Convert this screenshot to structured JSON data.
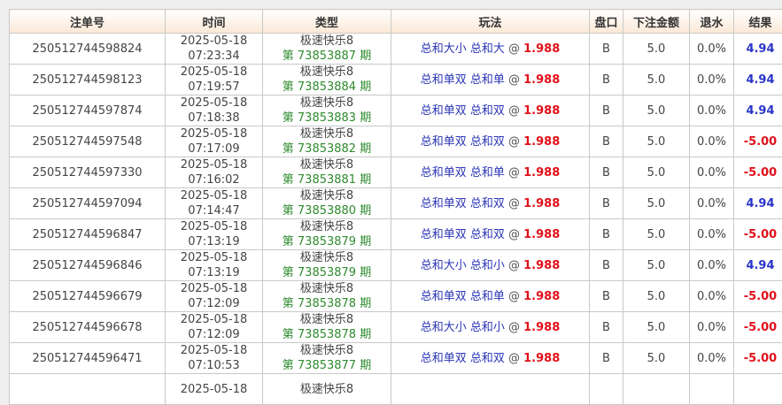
{
  "headers": [
    "注单号",
    "时间",
    "类型",
    "玩法",
    "盘口",
    "下注金额",
    "退水",
    "结果"
  ],
  "rows": [
    {
      "id": "250512744598824",
      "date": "2025-05-18",
      "time": "07:23:34",
      "game": "极速快乐8",
      "issue": "第 73853887 期",
      "play": "总和大小 总和大",
      "odds": "1.988",
      "pan": "B",
      "amount": "5.0",
      "rebate": "0.0%",
      "result": "4.94"
    },
    {
      "id": "250512744598123",
      "date": "2025-05-18",
      "time": "07:19:57",
      "game": "极速快乐8",
      "issue": "第 73853884 期",
      "play": "总和单双 总和单",
      "odds": "1.988",
      "pan": "B",
      "amount": "5.0",
      "rebate": "0.0%",
      "result": "4.94"
    },
    {
      "id": "250512744597874",
      "date": "2025-05-18",
      "time": "07:18:38",
      "game": "极速快乐8",
      "issue": "第 73853883 期",
      "play": "总和单双 总和双",
      "odds": "1.988",
      "pan": "B",
      "amount": "5.0",
      "rebate": "0.0%",
      "result": "4.94"
    },
    {
      "id": "250512744597548",
      "date": "2025-05-18",
      "time": "07:17:09",
      "game": "极速快乐8",
      "issue": "第 73853882 期",
      "play": "总和单双 总和双",
      "odds": "1.988",
      "pan": "B",
      "amount": "5.0",
      "rebate": "0.0%",
      "result": "-5.00"
    },
    {
      "id": "250512744597330",
      "date": "2025-05-18",
      "time": "07:16:02",
      "game": "极速快乐8",
      "issue": "第 73853881 期",
      "play": "总和单双 总和单",
      "odds": "1.988",
      "pan": "B",
      "amount": "5.0",
      "rebate": "0.0%",
      "result": "-5.00"
    },
    {
      "id": "250512744597094",
      "date": "2025-05-18",
      "time": "07:14:47",
      "game": "极速快乐8",
      "issue": "第 73853880 期",
      "play": "总和单双 总和双",
      "odds": "1.988",
      "pan": "B",
      "amount": "5.0",
      "rebate": "0.0%",
      "result": "4.94"
    },
    {
      "id": "250512744596847",
      "date": "2025-05-18",
      "time": "07:13:19",
      "game": "极速快乐8",
      "issue": "第 73853879 期",
      "play": "总和单双 总和双",
      "odds": "1.988",
      "pan": "B",
      "amount": "5.0",
      "rebate": "0.0%",
      "result": "-5.00"
    },
    {
      "id": "250512744596846",
      "date": "2025-05-18",
      "time": "07:13:19",
      "game": "极速快乐8",
      "issue": "第 73853879 期",
      "play": "总和大小 总和小",
      "odds": "1.988",
      "pan": "B",
      "amount": "5.0",
      "rebate": "0.0%",
      "result": "4.94"
    },
    {
      "id": "250512744596679",
      "date": "2025-05-18",
      "time": "07:12:09",
      "game": "极速快乐8",
      "issue": "第 73853878 期",
      "play": "总和单双 总和单",
      "odds": "1.988",
      "pan": "B",
      "amount": "5.0",
      "rebate": "0.0%",
      "result": "-5.00"
    },
    {
      "id": "250512744596678",
      "date": "2025-05-18",
      "time": "07:12:09",
      "game": "极速快乐8",
      "issue": "第 73853878 期",
      "play": "总和大小 总和小",
      "odds": "1.988",
      "pan": "B",
      "amount": "5.0",
      "rebate": "0.0%",
      "result": "-5.00"
    },
    {
      "id": "250512744596471",
      "date": "2025-05-18",
      "time": "07:10:53",
      "game": "极速快乐8",
      "issue": "第 73853877 期",
      "play": "总和单双 总和双",
      "odds": "1.988",
      "pan": "B",
      "amount": "5.0",
      "rebate": "0.0%",
      "result": "-5.00"
    },
    {
      "id": "",
      "date": "2025-05-18",
      "time": "",
      "game": "极速快乐8",
      "issue": "",
      "play": "",
      "odds": "",
      "pan": "",
      "amount": "",
      "rebate": "",
      "result": ""
    }
  ],
  "at_symbol": "@",
  "colors": {
    "win": "#2a35c8",
    "lose": "#e0101a",
    "issue": "#2e8b2e",
    "play": "#2a35b5"
  }
}
